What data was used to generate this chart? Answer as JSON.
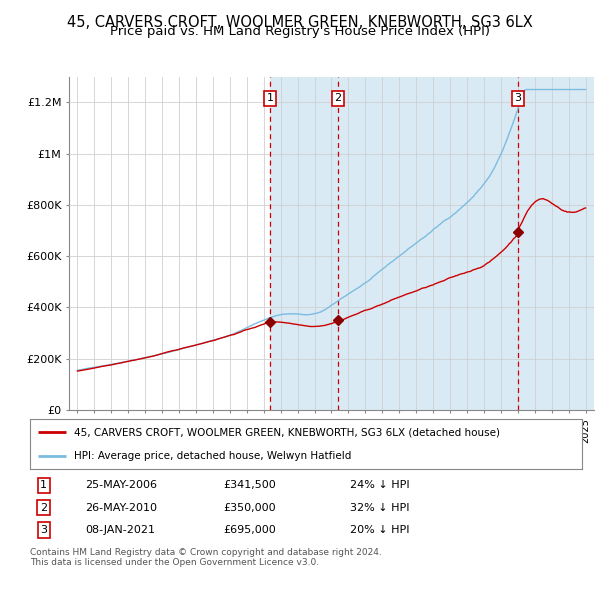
{
  "title": "45, CARVERS CROFT, WOOLMER GREEN, KNEBWORTH, SG3 6LX",
  "subtitle": "Price paid vs. HM Land Registry's House Price Index (HPI)",
  "title_fontsize": 10.5,
  "subtitle_fontsize": 9.5,
  "hpi_color": "#7bbce0",
  "price_color": "#cc0000",
  "sale_marker_color": "#8b0000",
  "vline_color": "#cc0000",
  "shade_color": "#daeaf5",
  "ylim": [
    0,
    1300000
  ],
  "yticks": [
    0,
    200000,
    400000,
    600000,
    800000,
    1000000,
    1200000
  ],
  "ytick_labels": [
    "£0",
    "£200K",
    "£400K",
    "£600K",
    "£800K",
    "£1M",
    "£1.2M"
  ],
  "xlim_min": 1994.5,
  "xlim_max": 2025.5,
  "xticks_start": 1995,
  "xticks_end": 2025,
  "legend_entries": [
    "45, CARVERS CROFT, WOOLMER GREEN, KNEBWORTH, SG3 6LX (detached house)",
    "HPI: Average price, detached house, Welwyn Hatfield"
  ],
  "sales": [
    {
      "num": "1",
      "date_x": 2006.38,
      "price": 341500
    },
    {
      "num": "2",
      "date_x": 2010.38,
      "price": 350000
    },
    {
      "num": "3",
      "date_x": 2021.02,
      "price": 695000
    }
  ],
  "table_rows": [
    {
      "num": "1",
      "date": "25-MAY-2006",
      "price": "£341,500",
      "pct": "24% ↓ HPI"
    },
    {
      "num": "2",
      "date": "26-MAY-2010",
      "price": "£350,000",
      "pct": "32% ↓ HPI"
    },
    {
      "num": "3",
      "date": "08-JAN-2021",
      "price": "£695,000",
      "pct": "20% ↓ HPI"
    }
  ],
  "footer": "Contains HM Land Registry data © Crown copyright and database right 2024.\nThis data is licensed under the Open Government Licence v3.0.",
  "background_color": "#ffffff",
  "grid_color": "#d0d0d0"
}
